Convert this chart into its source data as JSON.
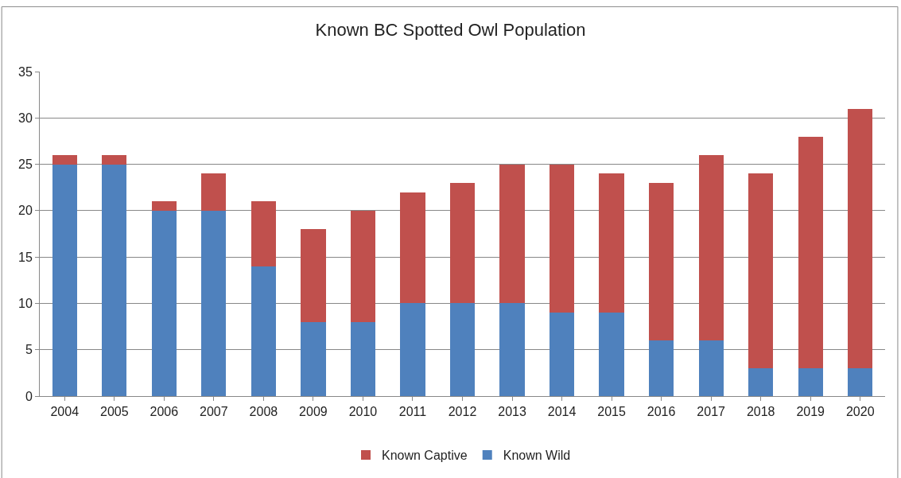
{
  "chart_data": {
    "type": "bar",
    "title": "Known BC Spotted Owl Population",
    "categories": [
      "2004",
      "2005",
      "2006",
      "2007",
      "2008",
      "2009",
      "2010",
      "2011",
      "2012",
      "2013",
      "2014",
      "2015",
      "2016",
      "2017",
      "2018",
      "2019",
      "2020"
    ],
    "series": [
      {
        "name": "Known Wild",
        "color": "#4f81bd",
        "values": [
          25,
          25,
          20,
          20,
          14,
          8,
          8,
          10,
          10,
          10,
          9,
          9,
          6,
          6,
          3,
          3,
          3
        ]
      },
      {
        "name": "Known Captive",
        "color": "#c0504d",
        "values": [
          1,
          1,
          1,
          4,
          7,
          10,
          12,
          12,
          13,
          15,
          16,
          15,
          17,
          20,
          21,
          25,
          28
        ]
      }
    ],
    "stacked": true,
    "ylim": [
      0,
      35
    ],
    "yticks": [
      0,
      5,
      10,
      15,
      20,
      25,
      30,
      35
    ],
    "grid": "y",
    "legend": "bottom"
  }
}
